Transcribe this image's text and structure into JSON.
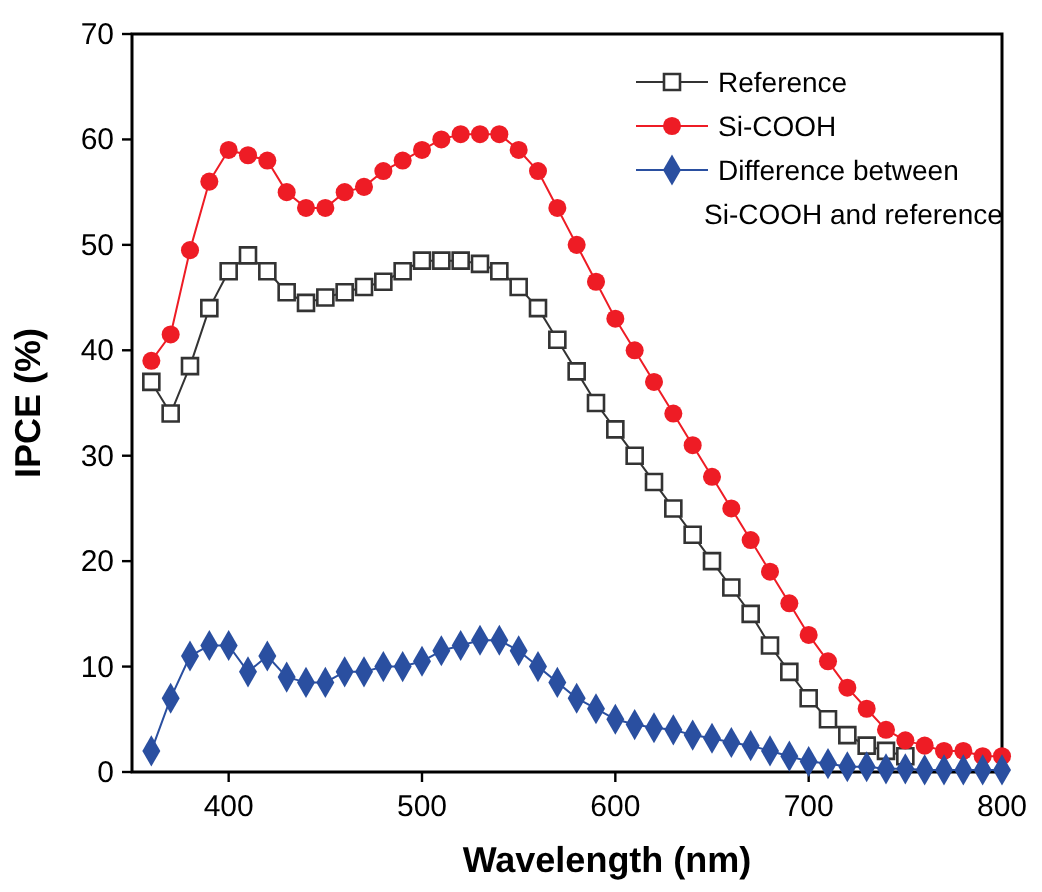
{
  "chart_data": {
    "type": "line",
    "xlabel": "Wavelength (nm)",
    "ylabel": "IPCE (%)",
    "xlim": [
      350,
      800
    ],
    "ylim": [
      0,
      70
    ],
    "xticks": [
      400,
      500,
      600,
      700,
      800
    ],
    "yticks": [
      0,
      10,
      20,
      30,
      40,
      50,
      60,
      70
    ],
    "grid": false,
    "legend": "top right",
    "x": [
      360,
      370,
      380,
      390,
      400,
      410,
      420,
      430,
      440,
      450,
      460,
      470,
      480,
      490,
      500,
      510,
      520,
      530,
      540,
      550,
      560,
      570,
      580,
      590,
      600,
      610,
      620,
      630,
      640,
      650,
      660,
      670,
      680,
      690,
      700,
      710,
      720,
      730,
      740,
      750,
      760,
      770,
      780,
      790,
      800
    ],
    "series": [
      {
        "name": "Reference",
        "color": "#333333",
        "marker": "square",
        "values": [
          37,
          34,
          38.5,
          44,
          47.5,
          49,
          47.5,
          45.5,
          44.5,
          45,
          45.5,
          46,
          46.5,
          47.5,
          48.5,
          48.5,
          48.5,
          48.2,
          47.5,
          46,
          44,
          41,
          38,
          35,
          32.5,
          30,
          27.5,
          25,
          22.5,
          20,
          17.5,
          15,
          12,
          9.5,
          7,
          5,
          3.5,
          2.5,
          2,
          1.5,
          null,
          null,
          null,
          null,
          null
        ]
      },
      {
        "name": "Si-COOH",
        "color": "#ee1c25",
        "marker": "circle",
        "values": [
          39,
          41.5,
          49.5,
          56,
          59,
          58.5,
          58,
          55,
          53.5,
          53.5,
          55,
          55.5,
          57,
          58,
          59,
          60,
          60.5,
          60.5,
          60.5,
          59,
          57,
          53.5,
          50,
          46.5,
          43,
          40,
          37,
          34,
          31,
          28,
          25,
          22,
          19,
          16,
          13,
          10.5,
          8,
          6,
          4,
          3,
          2.5,
          2,
          2,
          1.5,
          1.5
        ]
      },
      {
        "name": "Difference between Si-COOH and reference",
        "color": "#2a4fa0",
        "marker": "diamond",
        "values": [
          2,
          7,
          11,
          12,
          12,
          9.5,
          11,
          9,
          8.5,
          8.5,
          9.5,
          9.5,
          10,
          10,
          10.5,
          11.5,
          12,
          12.5,
          12.5,
          11.5,
          10,
          8.5,
          7,
          6,
          5,
          4.5,
          4.2,
          4,
          3.5,
          3.2,
          2.8,
          2.5,
          2,
          1.5,
          1,
          0.8,
          0.5,
          0.5,
          0.3,
          0.3,
          0.2,
          0.2,
          0.2,
          0.2,
          0.2
        ]
      }
    ]
  }
}
